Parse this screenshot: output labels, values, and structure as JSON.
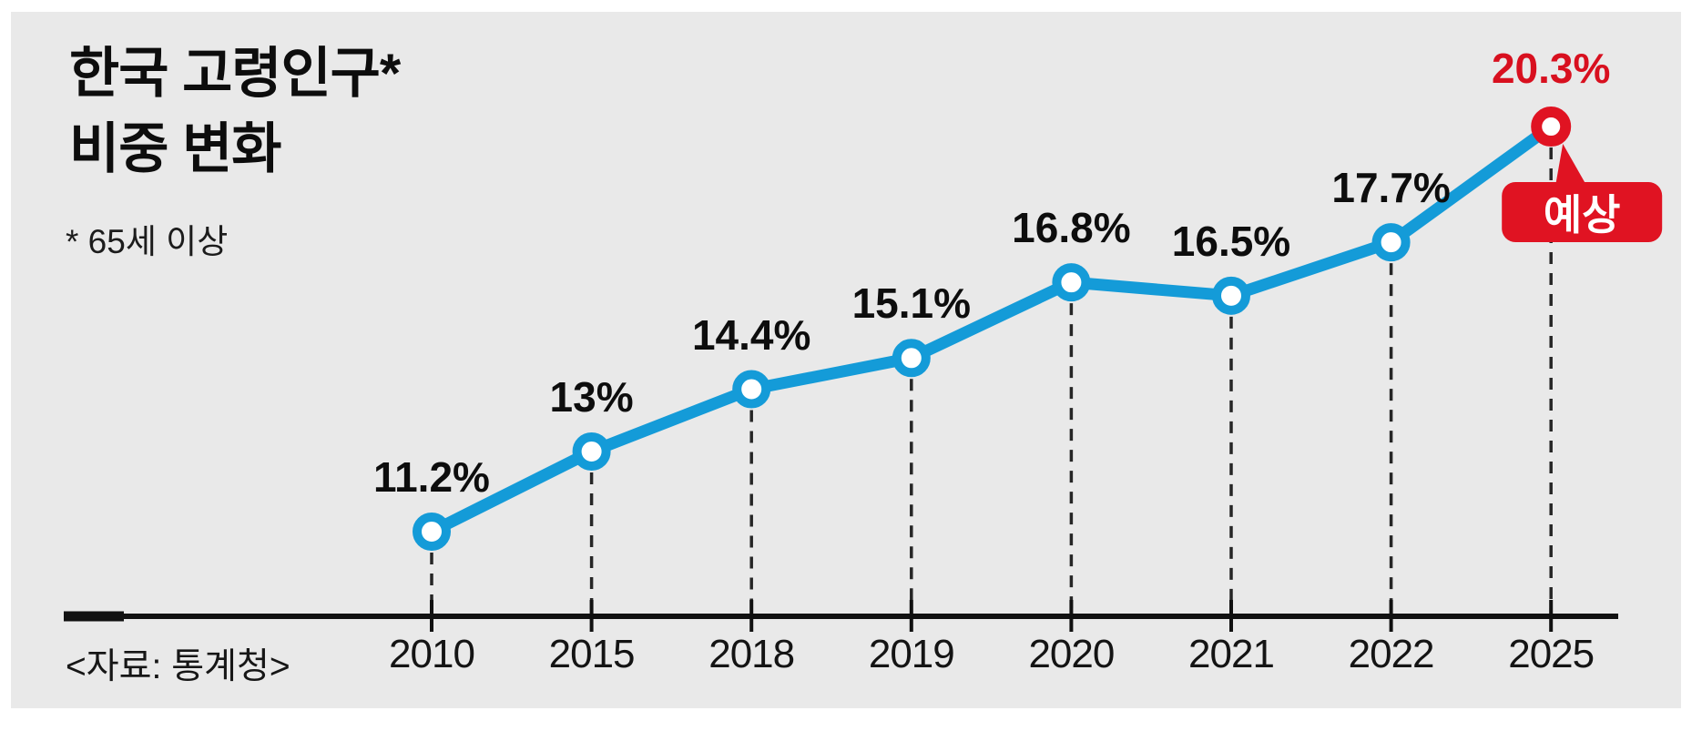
{
  "page": {
    "title_line1": "한국 고령인구*",
    "title_line2": "비중 변화",
    "footnote": "* 65세 이상",
    "source": "<자료: 통계청>"
  },
  "colors": {
    "background": "#e9e9e9",
    "frame": "#ffffff",
    "line": "#149bd8",
    "highlight": "#e01322",
    "axis": "#111111",
    "guide": "#262626",
    "text": "#0d0d0d"
  },
  "chart_data": {
    "type": "line",
    "title": "한국 고령인구(65세 이상) 비중 변화",
    "categories": [
      "2010",
      "2015",
      "2018",
      "2019",
      "2020",
      "2021",
      "2022",
      "2025"
    ],
    "values": [
      11.2,
      13,
      14.4,
      15.1,
      16.8,
      16.5,
      17.7,
      20.3
    ],
    "point_labels": [
      "11.2%",
      "13%",
      "14.4%",
      "15.1%",
      "16.8%",
      "16.5%",
      "17.7%",
      "20.3%"
    ],
    "unit": "%",
    "xlabel": "",
    "ylabel": "",
    "ylim": [
      10,
      22
    ],
    "grid": false,
    "legend": false,
    "highlight": {
      "index": 7,
      "label": "20.3%",
      "annotation": "예상"
    }
  }
}
